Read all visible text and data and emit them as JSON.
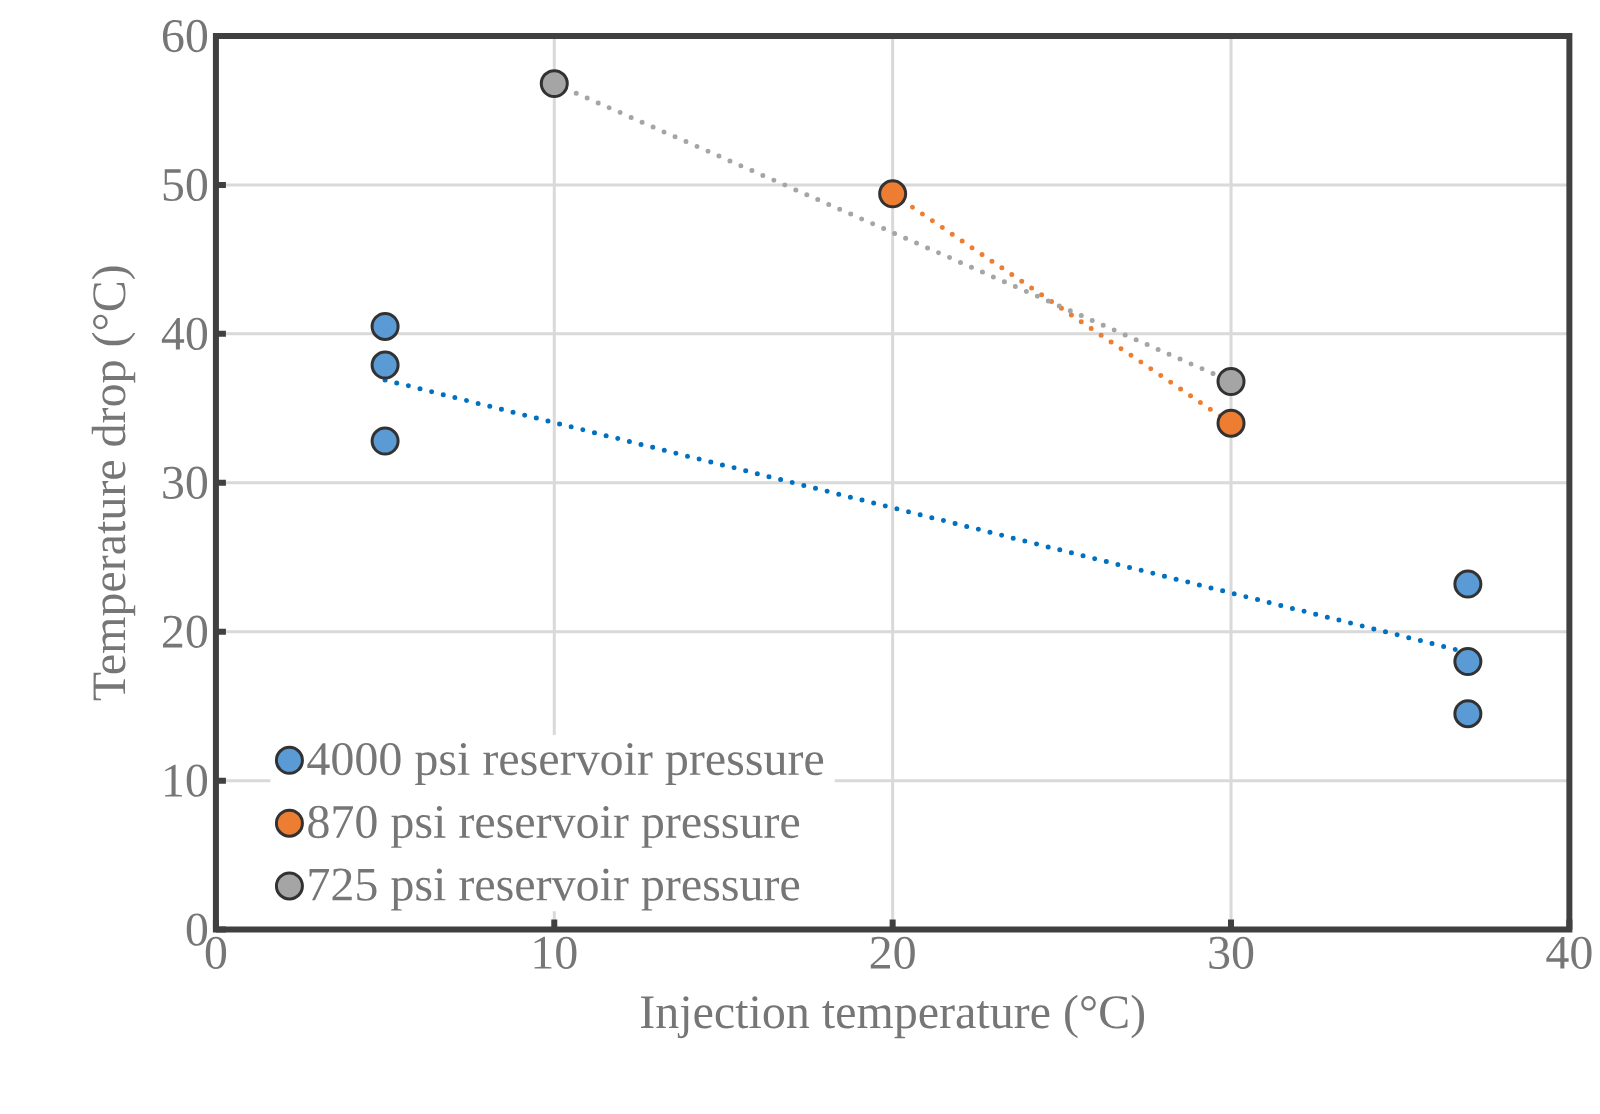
{
  "chart_data": {
    "type": "scatter",
    "xlabel": "Injection temperature (°C)",
    "ylabel": "Temperature drop (°C)",
    "xlim": [
      0,
      40
    ],
    "xticks": [
      0,
      10,
      20,
      30,
      40
    ],
    "ylim": [
      0,
      60
    ],
    "yticks": [
      0,
      10,
      20,
      30,
      40,
      50,
      60
    ],
    "grid": true,
    "legend": "bottom left",
    "series": [
      {
        "name": "4000 psi reservoir pressure",
        "type": "scatter",
        "marker": "circle",
        "color": "#5b9bd5",
        "x": [
          5,
          5,
          5,
          37,
          37,
          37
        ],
        "values": [
          40.5,
          37.9,
          32.8,
          23.2,
          18.0,
          14.5
        ]
      },
      {
        "name": "870 psi reservoir pressure",
        "type": "scatter",
        "marker": "circle",
        "color": "#ed7d31",
        "x": [
          20,
          30
        ],
        "values": [
          49.4,
          34.0
        ]
      },
      {
        "name": "725 psi reservoir pressure",
        "type": "scatter",
        "marker": "circle",
        "color": "#a5a5a5",
        "x": [
          10,
          30
        ],
        "values": [
          56.8,
          36.8
        ]
      },
      {
        "type": "line",
        "color": "#0070c0",
        "line_style": "dotted",
        "marker": "none",
        "x": [
          5,
          37
        ],
        "values": [
          36.9,
          18.6
        ]
      },
      {
        "type": "line",
        "color": "#ed7d31",
        "line_style": "dotted",
        "marker": "none",
        "x": [
          20,
          30
        ],
        "values": [
          49.4,
          34.0
        ]
      },
      {
        "type": "line",
        "color": "#a5a5a5",
        "line_style": "dotted",
        "marker": "none",
        "x": [
          10,
          30
        ],
        "values": [
          56.8,
          36.8
        ]
      }
    ]
  }
}
